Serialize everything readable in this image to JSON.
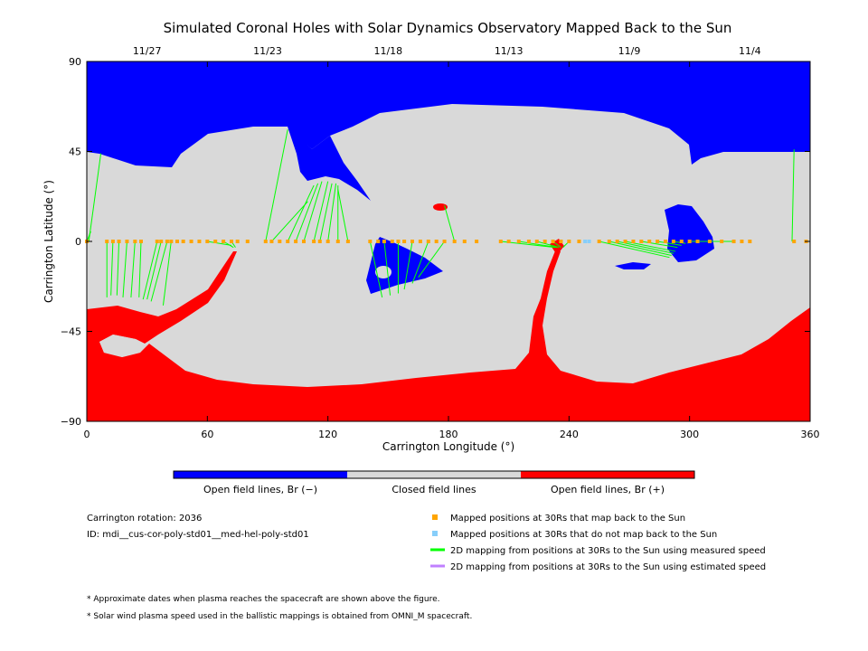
{
  "colors": {
    "open_negative": "#0000ff",
    "closed": "#d9d9d9",
    "open_positive": "#ff0000",
    "mapped_point": "#ffa500",
    "unmapped_point": "#87cefa",
    "measured_line": "#00ff00",
    "estimated_line": "#c080ff"
  },
  "chart_data": {
    "type": "map",
    "title": "Simulated Coronal Holes with Solar Dynamics Observatory Mapped Back to the Sun",
    "xlabel": "Carrington Longitude (°)",
    "ylabel": "Carrington Latitude (°)",
    "xlim": [
      0,
      360
    ],
    "ylim": [
      -90,
      90
    ],
    "x_ticks": [
      "0",
      "60",
      "120",
      "180",
      "240",
      "300",
      "360"
    ],
    "y_ticks": [
      "90",
      "45",
      "0",
      "−45",
      "−90"
    ],
    "top_dates": [
      {
        "label": "11/27",
        "lon": 30
      },
      {
        "label": "11/23",
        "lon": 90
      },
      {
        "label": "11/18",
        "lon": 150
      },
      {
        "label": "11/13",
        "lon": 210
      },
      {
        "label": "11/9",
        "lon": 270
      },
      {
        "label": "11/4",
        "lon": 330
      }
    ],
    "colorbar": [
      "Open field lines, Br (−)",
      "Closed field lines",
      "Open field lines, Br (+)"
    ],
    "mapped_lons": [
      0,
      10,
      13,
      16,
      20,
      24,
      27,
      35,
      37,
      40,
      42,
      45,
      48,
      52,
      56,
      60,
      64,
      68,
      72,
      75,
      80,
      89,
      92,
      96,
      100,
      104,
      108,
      113,
      116,
      120,
      125,
      130,
      141,
      145,
      148,
      152,
      155,
      158,
      162,
      166,
      170,
      174,
      178,
      183,
      188,
      194,
      206,
      210,
      215,
      220,
      224,
      228,
      232,
      236,
      240,
      245,
      255,
      260,
      264,
      268,
      272,
      276,
      280,
      284,
      288,
      292,
      296,
      300,
      304,
      310,
      316,
      322,
      326,
      330,
      352,
      358
    ],
    "unmapped_lons": [
      248,
      250
    ],
    "mappings": [
      {
        "lon": 0,
        "foot": [
          2,
          5
        ]
      },
      {
        "lon": 1,
        "foot": [
          7,
          44
        ]
      },
      {
        "lon": 10,
        "foot": [
          10,
          -28
        ]
      },
      {
        "lon": 13,
        "foot": [
          12,
          -27
        ]
      },
      {
        "lon": 16,
        "foot": [
          15,
          -27
        ]
      },
      {
        "lon": 20,
        "foot": [
          18,
          -28
        ]
      },
      {
        "lon": 24,
        "foot": [
          22,
          -28
        ]
      },
      {
        "lon": 27,
        "foot": [
          26,
          -28
        ]
      },
      {
        "lon": 35,
        "foot": [
          28,
          -29
        ]
      },
      {
        "lon": 37,
        "foot": [
          30,
          -29
        ]
      },
      {
        "lon": 40,
        "foot": [
          32,
          -30
        ]
      },
      {
        "lon": 42,
        "foot": [
          38,
          -32
        ]
      },
      {
        "lon": 60,
        "foot": [
          72,
          -2
        ]
      },
      {
        "lon": 68,
        "foot": [
          73,
          -3
        ]
      },
      {
        "lon": 72,
        "foot": [
          74,
          -3
        ]
      },
      {
        "lon": 89,
        "foot": [
          100,
          56
        ]
      },
      {
        "lon": 92,
        "foot": [
          110,
          20
        ]
      },
      {
        "lon": 100,
        "foot": [
          113,
          28
        ]
      },
      {
        "lon": 104,
        "foot": [
          115,
          29
        ]
      },
      {
        "lon": 108,
        "foot": [
          117,
          30
        ]
      },
      {
        "lon": 113,
        "foot": [
          120,
          30
        ]
      },
      {
        "lon": 116,
        "foot": [
          122,
          29
        ]
      },
      {
        "lon": 120,
        "foot": [
          124,
          29
        ]
      },
      {
        "lon": 125,
        "foot": [
          125,
          28
        ]
      },
      {
        "lon": 130,
        "foot": [
          125,
          26
        ]
      },
      {
        "lon": 141,
        "foot": [
          147,
          -28
        ]
      },
      {
        "lon": 148,
        "foot": [
          151,
          -27
        ]
      },
      {
        "lon": 155,
        "foot": [
          155,
          -26
        ]
      },
      {
        "lon": 162,
        "foot": [
          158,
          -24
        ]
      },
      {
        "lon": 170,
        "foot": [
          162,
          -21
        ]
      },
      {
        "lon": 178,
        "foot": [
          165,
          -18
        ]
      },
      {
        "lon": 183,
        "foot": [
          178,
          18
        ]
      },
      {
        "lon": 206,
        "foot": [
          233,
          -3
        ]
      },
      {
        "lon": 215,
        "foot": [
          234,
          -3
        ]
      },
      {
        "lon": 224,
        "foot": [
          235,
          -3
        ]
      },
      {
        "lon": 232,
        "foot": [
          236,
          -3
        ]
      },
      {
        "lon": 240,
        "foot": [
          237,
          -3
        ]
      },
      {
        "lon": 255,
        "foot": [
          290,
          -8
        ]
      },
      {
        "lon": 260,
        "foot": [
          291,
          -7
        ]
      },
      {
        "lon": 264,
        "foot": [
          292,
          -6
        ]
      },
      {
        "lon": 268,
        "foot": [
          293,
          -5
        ]
      },
      {
        "lon": 276,
        "foot": [
          294,
          -3
        ]
      },
      {
        "lon": 284,
        "foot": [
          296,
          -2
        ]
      },
      {
        "lon": 292,
        "foot": [
          298,
          -1
        ]
      },
      {
        "lon": 300,
        "foot": [
          299,
          -1
        ]
      },
      {
        "lon": 310,
        "foot": [
          301,
          0
        ]
      },
      {
        "lon": 322,
        "foot": [
          302,
          0
        ]
      },
      {
        "lon": 351,
        "foot": [
          352,
          46
        ]
      }
    ]
  },
  "info": {
    "rotation": "Carrington rotation: 2036",
    "id": "ID: mdi__cus-cor-poly-std01__med-hel-poly-std01"
  },
  "legend": {
    "mapped": "Mapped positions at 30Rs that map back to the Sun",
    "unmapped": "Mapped positions at 30Rs that do not map back to the Sun",
    "measured": "2D mapping from positions at 30Rs to the Sun using measured speed",
    "estimated": "2D mapping from positions at 30Rs to the Sun using estimated speed"
  },
  "footnotes": [
    "* Approximate dates when plasma reaches the spacecraft are shown above the figure.",
    "* Solar wind plasma speed used in the ballistic mappings is obtained from OMNI_M spacecraft."
  ]
}
